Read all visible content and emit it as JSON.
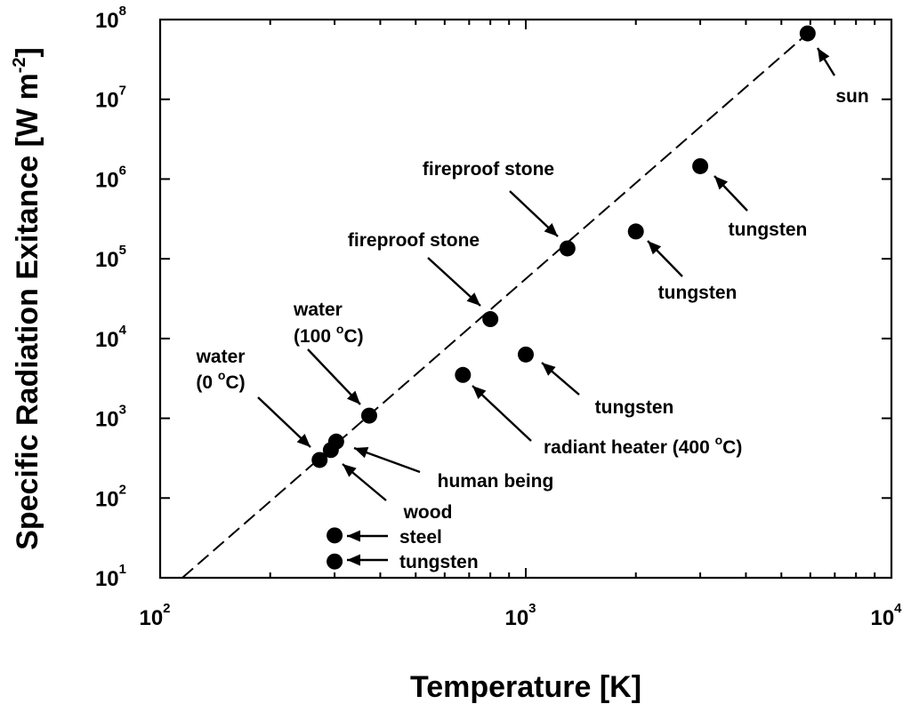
{
  "chart_data": {
    "type": "scatter",
    "xlabel": "Temperature [K]",
    "ylabel": {
      "main": "Specific Radiation Exitance [W m",
      "sup": "-2",
      "end": "]"
    },
    "x_scale": "log",
    "y_scale": "log",
    "xlim": [
      100,
      10000
    ],
    "ylim": [
      10,
      100000000
    ],
    "grid": false,
    "x_ticks": [
      {
        "value": 100,
        "base": "10",
        "exp": "2"
      },
      {
        "value": 1000,
        "base": "10",
        "exp": "3"
      },
      {
        "value": 10000,
        "base": "10",
        "exp": "4"
      }
    ],
    "y_ticks": [
      {
        "value": 10,
        "base": "10",
        "exp": "1"
      },
      {
        "value": 100,
        "base": "10",
        "exp": "2"
      },
      {
        "value": 1000,
        "base": "10",
        "exp": "3"
      },
      {
        "value": 10000,
        "base": "10",
        "exp": "4"
      },
      {
        "value": 100000,
        "base": "10",
        "exp": "5"
      },
      {
        "value": 1000000,
        "base": "10",
        "exp": "6"
      },
      {
        "value": 10000000,
        "base": "10",
        "exp": "7"
      },
      {
        "value": 100000000,
        "base": "10",
        "exp": "8"
      }
    ],
    "points": [
      {
        "x": 273,
        "y": 300
      },
      {
        "x": 293,
        "y": 400
      },
      {
        "x": 303,
        "y": 510
      },
      {
        "x": 373,
        "y": 1080
      },
      {
        "x": 300,
        "y": 34
      },
      {
        "x": 300,
        "y": 16
      },
      {
        "x": 673,
        "y": 3500
      },
      {
        "x": 800,
        "y": 17500
      },
      {
        "x": 1000,
        "y": 6300
      },
      {
        "x": 1300,
        "y": 135000
      },
      {
        "x": 2000,
        "y": 220000
      },
      {
        "x": 3000,
        "y": 1450000
      },
      {
        "x": 5900,
        "y": 67000000
      }
    ],
    "line": {
      "style": "dashed",
      "x": [
        115,
        5900
      ],
      "y": [
        10,
        67000000
      ]
    },
    "annotations": [
      {
        "lines": [
          {
            "text": "sun"
          }
        ]
      },
      {
        "lines": [
          {
            "text": "tungsten"
          }
        ]
      },
      {
        "lines": [
          {
            "text": "fireproof stone"
          }
        ]
      },
      {
        "lines": [
          {
            "text": "tungsten"
          }
        ]
      },
      {
        "lines": [
          {
            "text": "fireproof stone"
          }
        ]
      },
      {
        "lines": [
          {
            "text": "water"
          },
          {
            "text": "(100 ",
            "sup": "o",
            "after": "C)"
          }
        ]
      },
      {
        "lines": [
          {
            "text": "tungsten"
          }
        ]
      },
      {
        "lines": [
          {
            "text": "water"
          },
          {
            "text": "(0 ",
            "sup": "o",
            "after": "C)"
          }
        ]
      },
      {
        "lines": [
          {
            "text": "radiant heater (400   ",
            "sup": "o",
            "after": "C)"
          }
        ]
      },
      {
        "lines": [
          {
            "text": "human being"
          }
        ]
      },
      {
        "lines": [
          {
            "text": "wood"
          }
        ]
      },
      {
        "lines": [
          {
            "text": "steel"
          }
        ]
      },
      {
        "lines": [
          {
            "text": "tungsten"
          }
        ]
      }
    ]
  }
}
